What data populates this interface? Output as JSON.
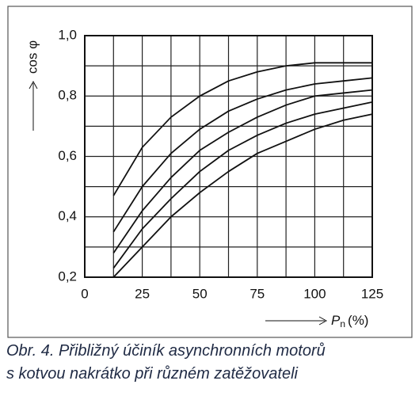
{
  "chart_data": {
    "type": "line",
    "ylabel": "cos φ",
    "xlabel_symbol": "P",
    "xlabel_subscript": "n",
    "xlabel_unit": "(%)",
    "xlim": [
      0,
      125
    ],
    "ylim": [
      0.2,
      1.0
    ],
    "xticks": [
      0,
      25,
      50,
      75,
      100,
      125
    ],
    "yticks": [
      {
        "value": 0.2,
        "label": "0,2"
      },
      {
        "value": 0.4,
        "label": "0,4"
      },
      {
        "value": 0.6,
        "label": "0,6"
      },
      {
        "value": 0.8,
        "label": "0,8"
      },
      {
        "value": 1.0,
        "label": "1,0"
      }
    ],
    "xgrid": [
      0,
      12.5,
      25,
      37.5,
      50,
      62.5,
      75,
      87.5,
      100,
      112.5,
      125
    ],
    "ygrid": [
      0.2,
      0.3,
      0.4,
      0.5,
      0.6,
      0.7,
      0.8,
      0.9,
      1.0
    ],
    "grid": true,
    "x": [
      12.5,
      25,
      37.5,
      50,
      62.5,
      75,
      87.5,
      100,
      112.5,
      125
    ],
    "series": [
      {
        "color": "#111111",
        "values": [
          0.47,
          0.63,
          0.73,
          0.8,
          0.85,
          0.88,
          0.9,
          0.91,
          0.91,
          0.91
        ]
      },
      {
        "color": "#111111",
        "values": [
          0.35,
          0.5,
          0.61,
          0.69,
          0.75,
          0.79,
          0.82,
          0.84,
          0.85,
          0.86
        ]
      },
      {
        "color": "#111111",
        "values": [
          0.28,
          0.42,
          0.53,
          0.62,
          0.68,
          0.73,
          0.77,
          0.8,
          0.81,
          0.82
        ]
      },
      {
        "color": "#111111",
        "values": [
          0.23,
          0.36,
          0.46,
          0.55,
          0.62,
          0.67,
          0.71,
          0.74,
          0.76,
          0.78
        ]
      },
      {
        "color": "#111111",
        "values": [
          0.2,
          0.3,
          0.4,
          0.48,
          0.55,
          0.61,
          0.65,
          0.69,
          0.72,
          0.74
        ]
      }
    ]
  },
  "caption": {
    "lines": [
      "Obr. 4. Přibližný účiník asynchronních motorů",
      "s kotvou nakrátko při různém zatěžovateli"
    ]
  }
}
